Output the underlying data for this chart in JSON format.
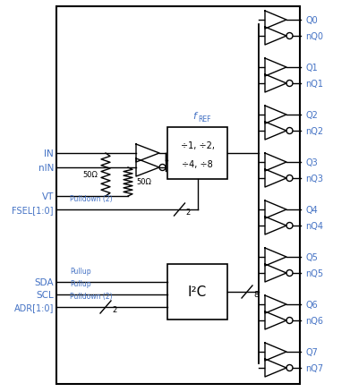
{
  "bg_color": "#ffffff",
  "border_color": "#000000",
  "label_color": "#4472c4",
  "figsize": [
    3.91,
    4.39
  ],
  "dpi": 100,
  "div_box_label_1": "÷1, ÷2,",
  "div_box_label_2": "÷4, ÷8",
  "i2c_label": "I²C",
  "outputs": [
    "Q0",
    "nQ0",
    "Q1",
    "nQ1",
    "Q2",
    "nQ2",
    "Q3",
    "nQ3",
    "Q4",
    "nQ4",
    "Q5",
    "nQ5",
    "Q6",
    "nQ6",
    "Q7",
    "nQ7"
  ]
}
